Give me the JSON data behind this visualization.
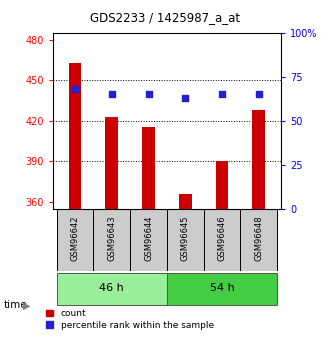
{
  "title": "GDS2233 / 1425987_a_at",
  "samples": [
    "GSM96642",
    "GSM96643",
    "GSM96644",
    "GSM96645",
    "GSM96646",
    "GSM96648"
  ],
  "counts": [
    463,
    423,
    415,
    366,
    390,
    428
  ],
  "percentiles": [
    68,
    65,
    65,
    63,
    65,
    65
  ],
  "groups": [
    {
      "label": "46 h",
      "indices": [
        0,
        1,
        2
      ],
      "color": "#99EE99"
    },
    {
      "label": "54 h",
      "indices": [
        3,
        4,
        5
      ],
      "color": "#44CC44"
    }
  ],
  "ylim_left": [
    355,
    485
  ],
  "ylim_right": [
    0,
    100
  ],
  "yticks_left": [
    360,
    390,
    420,
    450,
    480
  ],
  "yticks_right": [
    0,
    25,
    50,
    75,
    100
  ],
  "ytick_labels_right": [
    "0",
    "25",
    "50",
    "75",
    "100%"
  ],
  "bar_color": "#CC0000",
  "dot_color": "#2222CC",
  "bar_width": 0.35,
  "bg_plot": "#FFFFFF",
  "tick_box_color": "#CCCCCC",
  "label_count": "count",
  "label_percentile": "percentile rank within the sample",
  "gridlines_at": [
    390,
    420,
    450
  ]
}
